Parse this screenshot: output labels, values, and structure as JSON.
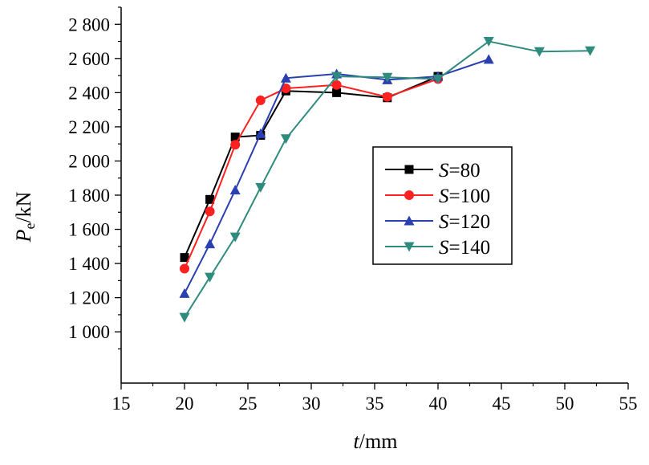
{
  "chart_data": {
    "type": "line",
    "xlabel": {
      "italic": "t",
      "rest": "/mm"
    },
    "ylabel": {
      "italic": "P",
      "sub": "e",
      "rest": "/kN"
    },
    "xlim": [
      15,
      55
    ],
    "ylim": [
      700,
      2900
    ],
    "x_ticks": [
      15,
      20,
      25,
      30,
      35,
      40,
      45,
      50,
      55
    ],
    "x_tick_labels": [
      "15",
      "20",
      "25",
      "30",
      "35",
      "40",
      "45",
      "50",
      "55"
    ],
    "y_ticks": [
      1000,
      1200,
      1400,
      1600,
      1800,
      2000,
      2200,
      2400,
      2600,
      2800
    ],
    "y_tick_labels": [
      "1 000",
      "1 200",
      "1 400",
      "1 600",
      "1 800",
      "2 000",
      "2 200",
      "2 400",
      "2 600",
      "2 800"
    ],
    "grid": false,
    "legend_position": "center-right",
    "series": [
      {
        "name": "S=80",
        "name_italic": "S",
        "name_rest": "=80",
        "color": "#000000",
        "marker": "square",
        "x": [
          20,
          22,
          24,
          26,
          28,
          32,
          36,
          40
        ],
        "y": [
          1435,
          1775,
          2140,
          2150,
          2410,
          2400,
          2370,
          2495
        ]
      },
      {
        "name": "S=100",
        "name_italic": "S",
        "name_rest": "=100",
        "color": "#ff2020",
        "marker": "circle",
        "x": [
          20,
          22,
          24,
          26,
          28,
          32,
          36,
          40
        ],
        "y": [
          1370,
          1705,
          2095,
          2355,
          2425,
          2445,
          2375,
          2480
        ]
      },
      {
        "name": "S=120",
        "name_italic": "S",
        "name_rest": "=120",
        "color": "#2a3fb0",
        "marker": "triangle-up",
        "x": [
          20,
          22,
          24,
          26,
          28,
          32,
          36,
          40,
          44
        ],
        "y": [
          1225,
          1515,
          1830,
          2160,
          2485,
          2510,
          2475,
          2495,
          2595
        ]
      },
      {
        "name": "S=140",
        "name_italic": "S",
        "name_rest": "=140",
        "color": "#2e8b7e",
        "marker": "triangle-down",
        "x": [
          20,
          22,
          24,
          26,
          28,
          32,
          36,
          40,
          44,
          48,
          52
        ],
        "y": [
          1085,
          1320,
          1555,
          1845,
          2130,
          2495,
          2490,
          2480,
          2700,
          2640,
          2645
        ]
      }
    ]
  }
}
